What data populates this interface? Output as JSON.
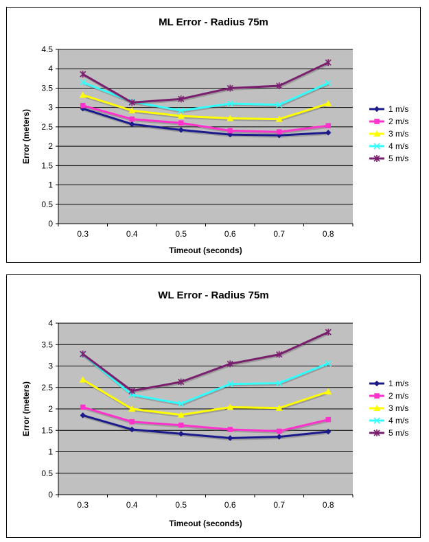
{
  "chart_data": [
    {
      "type": "line",
      "title": "ML Error - Radius 75m",
      "xlabel": "Timeout (seconds)",
      "ylabel": "Error (meters)",
      "categories": [
        "0.3",
        "0.4",
        "0.5",
        "0.6",
        "0.7",
        "0.8"
      ],
      "ylim": [
        0,
        4.5
      ],
      "yticks": [
        "0",
        "0.5",
        "1",
        "1.5",
        "2",
        "2.5",
        "3",
        "3.5",
        "4",
        "4.5"
      ],
      "grid": true,
      "legend_position": "right",
      "series": [
        {
          "name": "1 m/s",
          "color": "#1a1a8c",
          "marker": "diamond",
          "values": [
            2.97,
            2.57,
            2.42,
            2.3,
            2.28,
            2.35
          ]
        },
        {
          "name": "2 m/s",
          "color": "#ff33cc",
          "marker": "square",
          "values": [
            3.05,
            2.7,
            2.6,
            2.4,
            2.37,
            2.53
          ]
        },
        {
          "name": "3 m/s",
          "color": "#ffff00",
          "marker": "triangle",
          "values": [
            3.32,
            2.92,
            2.78,
            2.72,
            2.7,
            3.1
          ]
        },
        {
          "name": "4 m/s",
          "color": "#33ffff",
          "marker": "x",
          "values": [
            3.65,
            3.15,
            2.92,
            3.1,
            3.07,
            3.63
          ]
        },
        {
          "name": "5 m/s",
          "color": "#7a1f6e",
          "marker": "star",
          "values": [
            3.86,
            3.13,
            3.22,
            3.5,
            3.56,
            4.16
          ]
        }
      ]
    },
    {
      "type": "line",
      "title": "WL Error - Radius 75m",
      "xlabel": "Timeout (seconds)",
      "ylabel": "Error (meters)",
      "categories": [
        "0.3",
        "0.4",
        "0.5",
        "0.6",
        "0.7",
        "0.8"
      ],
      "ylim": [
        0,
        4
      ],
      "yticks": [
        "0",
        "0.5",
        "1",
        "1.5",
        "2",
        "2.5",
        "3",
        "3.5",
        "4"
      ],
      "grid": true,
      "legend_position": "right",
      "series": [
        {
          "name": "1 m/s",
          "color": "#1a1a8c",
          "marker": "diamond",
          "values": [
            1.85,
            1.52,
            1.42,
            1.32,
            1.35,
            1.47
          ]
        },
        {
          "name": "2 m/s",
          "color": "#ff33cc",
          "marker": "square",
          "values": [
            2.04,
            1.7,
            1.62,
            1.52,
            1.48,
            1.75
          ]
        },
        {
          "name": "3 m/s",
          "color": "#ffff00",
          "marker": "triangle",
          "values": [
            2.68,
            2.0,
            1.86,
            2.04,
            2.02,
            2.4
          ]
        },
        {
          "name": "4 m/s",
          "color": "#33ffff",
          "marker": "x",
          "values": [
            3.27,
            2.33,
            2.12,
            2.58,
            2.6,
            3.06
          ]
        },
        {
          "name": "5 m/s",
          "color": "#7a1f6e",
          "marker": "star",
          "values": [
            3.28,
            2.42,
            2.63,
            3.05,
            3.27,
            3.79
          ]
        }
      ]
    }
  ]
}
